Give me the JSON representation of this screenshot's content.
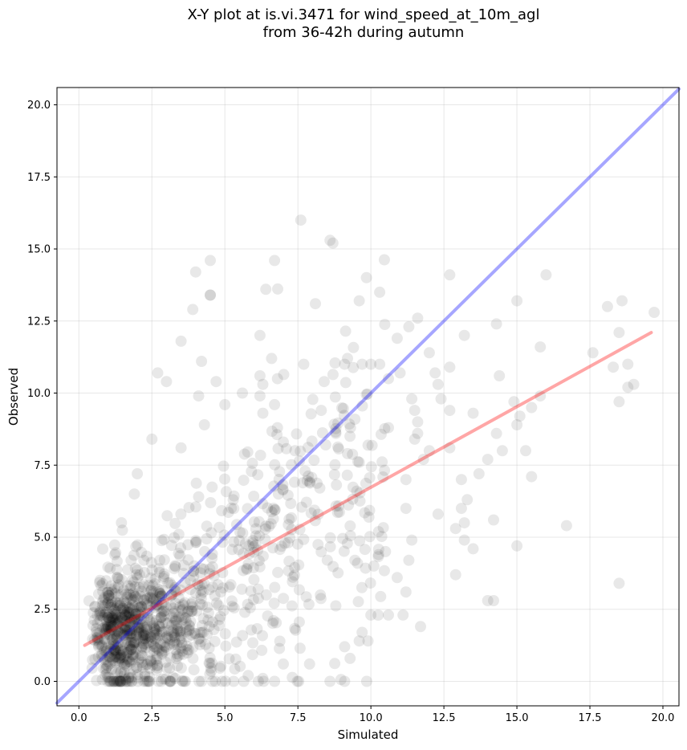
{
  "chart_data": {
    "type": "scatter",
    "title_line1": "X-Y plot at is.vi.3471 for wind_speed_at_10m_agl",
    "title_line2": "from 36-42h during autumn",
    "xlabel": "Simulated",
    "ylabel": "Observed",
    "xlim": [
      -0.75,
      20.55
    ],
    "ylim": [
      -0.85,
      20.6
    ],
    "x_ticks": [
      0.0,
      2.5,
      5.0,
      7.5,
      10.0,
      12.5,
      15.0,
      17.5,
      20.0
    ],
    "y_ticks": [
      0.0,
      2.5,
      5.0,
      7.5,
      10.0,
      12.5,
      15.0,
      17.5,
      20.0
    ],
    "x_tick_labels": [
      "0.0",
      "2.5",
      "5.0",
      "7.5",
      "10.0",
      "12.5",
      "15.0",
      "17.5",
      "20.0"
    ],
    "y_tick_labels": [
      "0.0",
      "2.5",
      "5.0",
      "7.5",
      "10.0",
      "12.5",
      "15.0",
      "17.5",
      "20.0"
    ],
    "grid": true,
    "point_color": "#000000",
    "point_alpha": 0.09,
    "identity_line": {
      "color": "#0000ff",
      "alpha": 0.35,
      "x": [
        -0.75,
        20.55
      ],
      "y": [
        -0.75,
        20.55
      ]
    },
    "regression_line": {
      "color": "#ff0000",
      "alpha": 0.35,
      "x": [
        0.2,
        19.6
      ],
      "y": [
        1.25,
        12.1
      ]
    },
    "points": [
      [
        7.6,
        16.0
      ],
      [
        8.6,
        15.3
      ],
      [
        8.7,
        15.2
      ],
      [
        4.5,
        14.6
      ],
      [
        6.7,
        14.6
      ],
      [
        4.0,
        14.2
      ],
      [
        12.7,
        14.1
      ],
      [
        16.0,
        14.1
      ],
      [
        6.4,
        13.6
      ],
      [
        10.3,
        13.5
      ],
      [
        4.5,
        13.4
      ],
      [
        4.5,
        13.4
      ],
      [
        9.6,
        13.2
      ],
      [
        15.0,
        13.2
      ],
      [
        18.6,
        13.2
      ],
      [
        8.1,
        13.1
      ],
      [
        18.1,
        13.0
      ],
      [
        3.9,
        12.9
      ],
      [
        19.7,
        12.8
      ],
      [
        11.6,
        12.6
      ],
      [
        11.3,
        12.3
      ],
      [
        14.3,
        12.4
      ],
      [
        13.2,
        12.0
      ],
      [
        6.2,
        12.0
      ],
      [
        18.5,
        12.1
      ],
      [
        3.5,
        11.8
      ],
      [
        10.9,
        11.9
      ],
      [
        15.8,
        11.6
      ],
      [
        17.6,
        11.4
      ],
      [
        12.0,
        11.4
      ],
      [
        6.6,
        11.2
      ],
      [
        4.2,
        11.1
      ],
      [
        9.2,
        11.2
      ],
      [
        9.1,
        11.0
      ],
      [
        9.7,
        11.0
      ],
      [
        10.0,
        11.0
      ],
      [
        10.3,
        11.0
      ],
      [
        7.7,
        11.0
      ],
      [
        18.8,
        11.0
      ],
      [
        18.3,
        10.9
      ],
      [
        12.7,
        10.9
      ],
      [
        11.0,
        10.7
      ],
      [
        12.2,
        10.7
      ],
      [
        2.7,
        10.7
      ],
      [
        6.2,
        10.6
      ],
      [
        14.4,
        10.6
      ],
      [
        10.6,
        10.5
      ],
      [
        6.8,
        10.5
      ],
      [
        3.0,
        10.4
      ],
      [
        4.7,
        10.4
      ],
      [
        8.4,
        10.4
      ],
      [
        12.3,
        10.3
      ],
      [
        19.0,
        10.3
      ],
      [
        6.3,
        10.3
      ],
      [
        18.8,
        10.2
      ],
      [
        5.6,
        10.0
      ],
      [
        4.1,
        9.9
      ],
      [
        6.2,
        9.9
      ],
      [
        15.8,
        9.9
      ],
      [
        11.4,
        9.8
      ],
      [
        12.4,
        9.8
      ],
      [
        14.9,
        9.7
      ],
      [
        18.5,
        9.7
      ],
      [
        6.7,
        9.6
      ],
      [
        5.0,
        9.6
      ],
      [
        15.5,
        9.5
      ],
      [
        8.3,
        9.4
      ],
      [
        11.5,
        9.4
      ],
      [
        12.7,
        9.4
      ],
      [
        6.3,
        9.3
      ],
      [
        15.1,
        9.2
      ],
      [
        13.5,
        9.3
      ],
      [
        11.6,
        9.0
      ],
      [
        15.0,
        8.9
      ],
      [
        4.3,
        8.9
      ],
      [
        9.3,
        8.8
      ],
      [
        6.8,
        8.8
      ],
      [
        10.6,
        8.8
      ],
      [
        8.8,
        8.6
      ],
      [
        14.3,
        8.6
      ],
      [
        11.6,
        8.6
      ],
      [
        2.5,
        8.4
      ],
      [
        11.5,
        8.4
      ],
      [
        7.0,
        8.3
      ],
      [
        12.7,
        8.1
      ],
      [
        14.5,
        8.0
      ],
      [
        15.3,
        8.0
      ],
      [
        12.0,
        8.0
      ],
      [
        3.5,
        8.1
      ],
      [
        7.4,
        8.0
      ],
      [
        9.2,
        7.9
      ],
      [
        11.8,
        7.7
      ],
      [
        14.0,
        7.7
      ],
      [
        9.6,
        7.6
      ],
      [
        2.0,
        7.2
      ],
      [
        13.1,
        7.0
      ],
      [
        15.5,
        7.1
      ],
      [
        13.7,
        7.2
      ],
      [
        11.2,
        7.0
      ],
      [
        1.9,
        6.5
      ],
      [
        13.3,
        6.3
      ],
      [
        4.1,
        6.4
      ],
      [
        13.1,
        6.0
      ],
      [
        11.2,
        6.0
      ],
      [
        14.2,
        5.6
      ],
      [
        12.3,
        5.8
      ],
      [
        13.2,
        5.5
      ],
      [
        12.9,
        5.3
      ],
      [
        16.7,
        5.4
      ],
      [
        13.2,
        4.9
      ],
      [
        11.4,
        4.9
      ],
      [
        13.5,
        4.6
      ],
      [
        15.0,
        4.7
      ],
      [
        10.5,
        4.5
      ],
      [
        11.3,
        4.2
      ],
      [
        10.1,
        4.0
      ],
      [
        12.9,
        3.7
      ],
      [
        18.5,
        3.4
      ],
      [
        10.9,
        3.6
      ],
      [
        11.2,
        3.1
      ],
      [
        14.0,
        2.8
      ],
      [
        14.2,
        2.8
      ],
      [
        9.7,
        1.7
      ],
      [
        10.6,
        2.3
      ],
      [
        11.1,
        2.3
      ],
      [
        10.0,
        2.3
      ],
      [
        11.7,
        1.9
      ],
      [
        9.6,
        1.4
      ],
      [
        9.1,
        1.2
      ],
      [
        9.9,
        1.4
      ],
      [
        7.9,
        0.6
      ],
      [
        7.0,
        0.6
      ],
      [
        8.6,
        0.0
      ],
      [
        9.1,
        0.0
      ],
      [
        6.3,
        0.1
      ],
      [
        5.8,
        0.2
      ],
      [
        6.7,
        0.0
      ],
      [
        5.3,
        0.0
      ],
      [
        4.2,
        0.0
      ],
      [
        3.3,
        0.1
      ]
    ]
  }
}
